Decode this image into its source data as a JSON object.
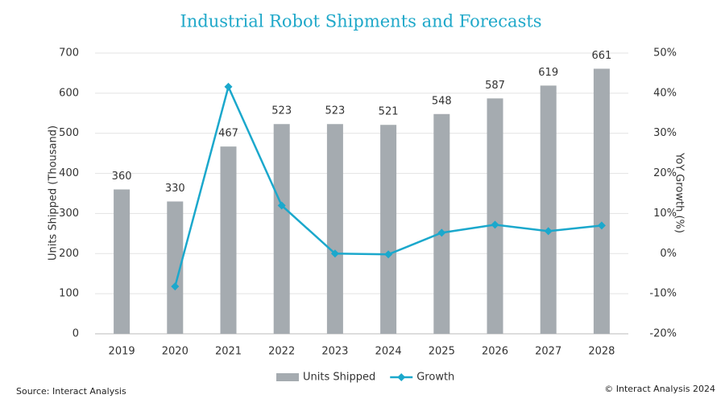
{
  "chart_data": {
    "type": "combo",
    "title": "Industrial Robot Shipments and Forecasts",
    "categories": [
      "2019",
      "2020",
      "2021",
      "2022",
      "2023",
      "2024",
      "2025",
      "2026",
      "2027",
      "2028"
    ],
    "series": [
      {
        "name": "Units Shipped",
        "type": "bar",
        "color": "#a5abb0",
        "values": [
          360,
          330,
          467,
          523,
          523,
          521,
          548,
          587,
          619,
          661
        ]
      },
      {
        "name": "Growth",
        "type": "line",
        "axis": "y2",
        "color": "#1ba8cc",
        "values": [
          null,
          -8.2,
          41.6,
          12.0,
          0.0,
          -0.2,
          5.2,
          7.2,
          5.6,
          7.0
        ]
      }
    ],
    "ylabel": "Units Shipped (Thousand)",
    "y2label": "YoY Growth (%)",
    "ylim": [
      0,
      700
    ],
    "yticks": [
      0,
      100,
      200,
      300,
      400,
      500,
      600,
      700
    ],
    "y2lim": [
      -20,
      50
    ],
    "y2ticks": [
      {
        "value": -20,
        "label": "-20%"
      },
      {
        "value": -10,
        "label": "-10%"
      },
      {
        "value": 0,
        "label": "0%"
      },
      {
        "value": 10,
        "label": "10%"
      },
      {
        "value": 20,
        "label": "20%"
      },
      {
        "value": 30,
        "label": "30%"
      },
      {
        "value": 40,
        "label": "40%"
      },
      {
        "value": 50,
        "label": "50%"
      }
    ],
    "grid": true,
    "legend": "bottom",
    "source": "Source: Interact Analysis",
    "copyright": "© Interact Analysis 2024"
  }
}
